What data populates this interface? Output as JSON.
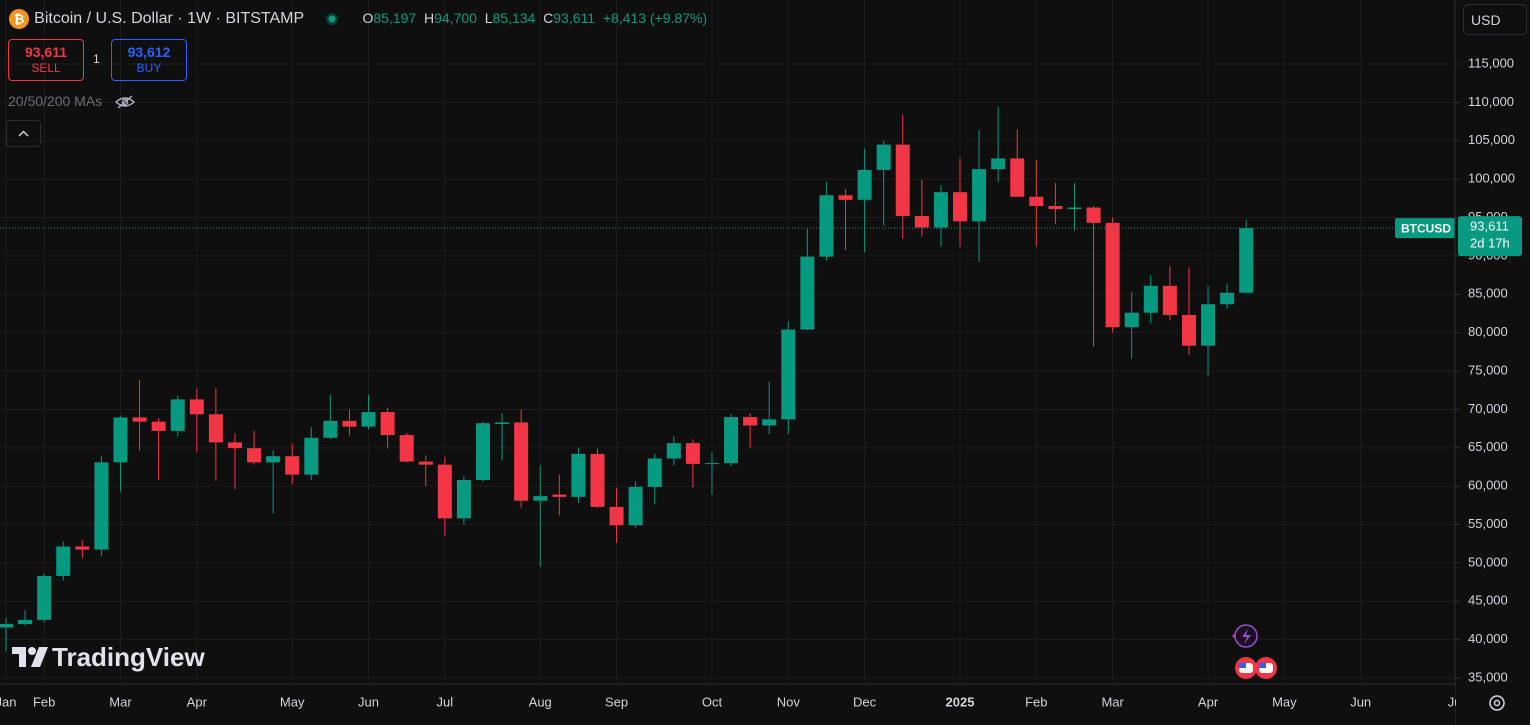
{
  "header": {
    "title": "Bitcoin / U.S. Dollar · 1W · BITSTAMP",
    "open_key": "O",
    "open": "85,197",
    "high_key": "H",
    "high": "94,700",
    "low_key": "L",
    "low": "85,134",
    "close_key": "C",
    "close": "93,611",
    "change": "+8,413 (+9.87%)",
    "sell_price": "93,611",
    "sell": "SELL",
    "spread": "1",
    "buy_price": "93,612",
    "buy": "BUY",
    "indicator": "20/50/200 MAs",
    "currency": "USD",
    "brand": "TradingView"
  },
  "chart_data": {
    "type": "candlestick",
    "up_color": "#089981",
    "down_color": "#f23645",
    "grid": true,
    "categories": [
      "Jan",
      null,
      "Feb",
      null,
      null,
      null,
      "Mar",
      null,
      null,
      null,
      "Apr",
      null,
      null,
      null,
      null,
      "May",
      null,
      null,
      null,
      "Jun",
      null,
      null,
      null,
      "Jul",
      null,
      null,
      null,
      null,
      "Aug",
      null,
      null,
      null,
      "Sep",
      null,
      null,
      null,
      null,
      "Oct",
      null,
      null,
      null,
      "Nov",
      null,
      null,
      null,
      "Dec",
      null,
      null,
      null,
      null,
      "2025",
      null,
      null,
      null,
      "Feb",
      null,
      null,
      null,
      "Mar",
      null,
      null,
      null,
      null,
      "Apr",
      null,
      null,
      null,
      "May",
      null,
      null,
      null,
      "Jun",
      null,
      null,
      null,
      null,
      "Jul"
    ],
    "open": [
      41580,
      42030,
      42580,
      48300,
      52130,
      51730,
      63100,
      68950,
      68400,
      67200,
      71300,
      69360,
      65700,
      64950,
      63100,
      63900,
      61500,
      66300,
      68500,
      67750,
      69650,
      66650,
      63200,
      62800,
      55800,
      60800,
      68100,
      68300,
      58100,
      58900,
      58600,
      64200,
      57300,
      54900,
      59900,
      63600,
      65600,
      62900,
      63000,
      69000,
      67900,
      68700,
      80400,
      89900,
      97900,
      97300,
      101200,
      104500,
      95200,
      93700,
      98300,
      94500,
      101300,
      102700,
      97700,
      96500,
      96100,
      96300,
      94300,
      80700,
      82600,
      86100,
      82300,
      78300,
      83700,
      85197,
      null,
      null,
      null,
      null,
      null,
      null,
      null,
      null,
      null,
      null,
      null
    ],
    "high": [
      42850,
      43880,
      48600,
      52800,
      52980,
      64000,
      69200,
      73800,
      68900,
      71800,
      72700,
      72800,
      66900,
      67200,
      64700,
      65500,
      67700,
      71900,
      70000,
      71900,
      70200,
      66900,
      64000,
      63800,
      61300,
      68400,
      69500,
      70000,
      62700,
      61500,
      65000,
      64900,
      59800,
      60600,
      64200,
      66500,
      66100,
      64400,
      69400,
      69500,
      73600,
      81500,
      93500,
      99600,
      98700,
      104000,
      105000,
      108400,
      99900,
      99200,
      102700,
      106400,
      109400,
      106500,
      102500,
      99500,
      99500,
      96500,
      95000,
      85300,
      87500,
      88700,
      88500,
      86100,
      86400,
      94700,
      null,
      null,
      null,
      null,
      null,
      null,
      null,
      null,
      null,
      null,
      null
    ],
    "low": [
      38500,
      41800,
      42250,
      47700,
      50600,
      50900,
      59300,
      64600,
      60800,
      66500,
      64500,
      60700,
      59600,
      62800,
      56500,
      60200,
      60800,
      66100,
      66600,
      67400,
      64900,
      63100,
      60000,
      53500,
      55000,
      60600,
      63400,
      57200,
      49500,
      56200,
      57800,
      57200,
      52600,
      54600,
      57600,
      62700,
      59800,
      58900,
      62600,
      65000,
      66800,
      66800,
      80300,
      89400,
      90800,
      90500,
      94000,
      92200,
      92500,
      91200,
      91200,
      89200,
      99600,
      97800,
      91200,
      94100,
      93300,
      78200,
      80000,
      76600,
      81200,
      81600,
      77100,
      74400,
      83100,
      85134,
      null,
      null,
      null,
      null,
      null,
      null,
      null,
      null,
      null,
      null,
      null
    ],
    "close": [
      42030,
      42580,
      48300,
      52130,
      51730,
      63100,
      68950,
      68400,
      67200,
      71300,
      69360,
      65700,
      64950,
      63100,
      63900,
      61500,
      66300,
      68500,
      67750,
      69650,
      66650,
      63200,
      62800,
      55800,
      60800,
      68200,
      68300,
      58100,
      58700,
      58600,
      64200,
      57300,
      54900,
      59900,
      63600,
      65600,
      62900,
      63000,
      69000,
      67900,
      68700,
      80400,
      89900,
      97900,
      97300,
      101200,
      104500,
      95200,
      93700,
      98300,
      94500,
      101300,
      102700,
      97700,
      96500,
      96100,
      96300,
      94300,
      80700,
      82600,
      86100,
      82300,
      78300,
      83700,
      85197,
      93611,
      null,
      null,
      null,
      null,
      null,
      null,
      null,
      null,
      null,
      null,
      null
    ],
    "ylim": [
      34350,
      123340
    ],
    "yticks": [
      {
        "value": 35000,
        "label": "35,000"
      },
      {
        "value": 40000,
        "label": "40,000"
      },
      {
        "value": 45000,
        "label": "45,000"
      },
      {
        "value": 50000,
        "label": "50,000"
      },
      {
        "value": 55000,
        "label": "55,000"
      },
      {
        "value": 60000,
        "label": "60,000"
      },
      {
        "value": 65000,
        "label": "65,000"
      },
      {
        "value": 70000,
        "label": "70,000"
      },
      {
        "value": 75000,
        "label": "75,000"
      },
      {
        "value": 80000,
        "label": "80,000"
      },
      {
        "value": 85000,
        "label": "85,000"
      },
      {
        "value": 90000,
        "label": "90,000"
      },
      {
        "value": 95000,
        "label": "95,000"
      },
      {
        "value": 100000,
        "label": "100,000"
      },
      {
        "value": 105000,
        "label": "105,000"
      },
      {
        "value": 110000,
        "label": "110,000"
      },
      {
        "value": 115000,
        "label": "115,000"
      }
    ],
    "last_symbol": "BTCUSD",
    "last_label": "93,611",
    "countdown": "2d 17h"
  }
}
